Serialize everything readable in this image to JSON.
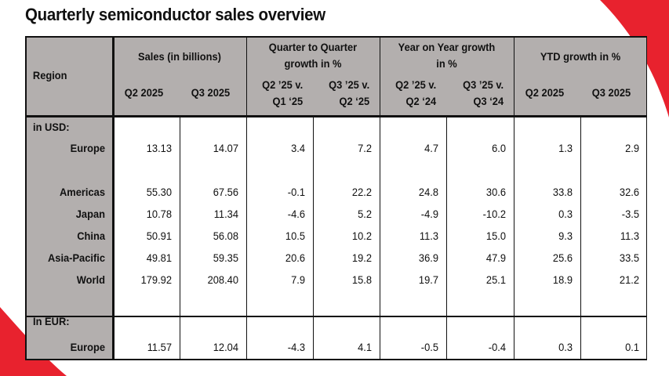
{
  "title": "Quarterly semiconductor sales overview",
  "colors": {
    "header_bg": "#b3afae",
    "accent_red": "#e8222e"
  },
  "header": {
    "region": "Region",
    "groups": [
      "Sales (in billions)",
      "Quarter to Quarter growth in %",
      "Year on Year growth in %",
      "YTD growth in %"
    ],
    "subheaders": [
      "Q2 2025",
      "Q3 2025",
      "Q2 ’25 v. Q1 ‘25",
      "Q3 ’25 v. Q2 ‘25",
      "Q2 ’25 v. Q2 ‘24",
      "Q3 ’25 v. Q3 ‘24",
      "Q2 2025",
      "Q3 2025"
    ]
  },
  "sections": [
    {
      "label": "in USD:",
      "rows": [
        {
          "region": "Europe",
          "values": [
            "13.13",
            "14.07",
            "3.4",
            "7.2",
            "4.7",
            "6.0",
            "1.3",
            "2.9"
          ]
        },
        {
          "region": "Americas",
          "values": [
            "55.30",
            "67.56",
            "-0.1",
            "22.2",
            "24.8",
            "30.6",
            "33.8",
            "32.6"
          ]
        },
        {
          "region": "Japan",
          "values": [
            "10.78",
            "11.34",
            "-4.6",
            "5.2",
            "-4.9",
            "-10.2",
            "0.3",
            "-3.5"
          ]
        },
        {
          "region": "China",
          "values": [
            "50.91",
            "56.08",
            "10.5",
            "10.2",
            "11.3",
            "15.0",
            "9.3",
            "11.3"
          ]
        },
        {
          "region": "Asia-Pacific",
          "values": [
            "49.81",
            "59.35",
            "20.6",
            "19.2",
            "36.9",
            "47.9",
            "25.6",
            "33.5"
          ]
        },
        {
          "region": "World",
          "values": [
            "179.92",
            "208.40",
            "7.9",
            "15.8",
            "19.7",
            "25.1",
            "18.9",
            "21.2"
          ]
        }
      ]
    },
    {
      "label": "In EUR:",
      "rows": [
        {
          "region": "Europe",
          "values": [
            "11.57",
            "12.04",
            "-4.3",
            "4.1",
            "-0.5",
            "-0.4",
            "0.3",
            "0.1"
          ]
        }
      ]
    }
  ]
}
